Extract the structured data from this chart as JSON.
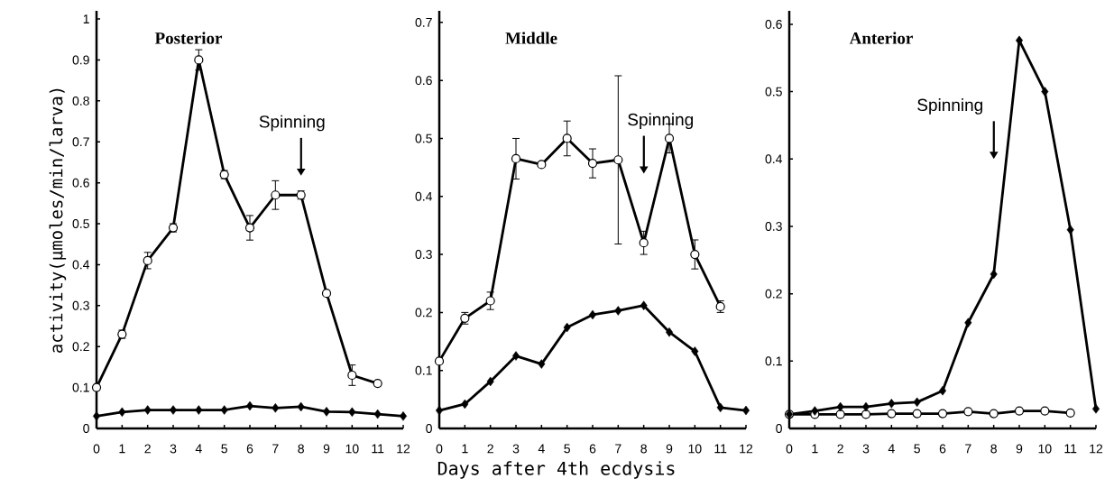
{
  "chart_data": [
    {
      "type": "line",
      "title": "Posterior",
      "ylabel": "activity(μmoles/min/larva)",
      "xlim": [
        0,
        12
      ],
      "xticks": [
        0,
        1,
        2,
        3,
        4,
        5,
        6,
        7,
        8,
        9,
        10,
        11,
        12
      ],
      "ylim": [
        0,
        1.02
      ],
      "yticks": [
        0,
        0.1,
        0.2,
        0.3,
        0.4,
        0.5,
        0.6,
        0.7,
        0.8,
        0.9,
        1
      ],
      "series": [
        {
          "color": "#000000",
          "marker": "circle",
          "x": [
            0,
            1,
            2,
            3,
            4,
            5,
            6,
            7,
            8,
            9,
            10,
            11
          ],
          "values": [
            0.1,
            0.23,
            0.41,
            0.49,
            0.9,
            0.62,
            0.49,
            0.57,
            0.57,
            0.33,
            0.13,
            0.11
          ],
          "errors": [
            null,
            0.01,
            0.02,
            0.01,
            0.025,
            0.01,
            0.03,
            0.035,
            0.01,
            null,
            0.025,
            null
          ]
        },
        {
          "color": "#000000",
          "marker": "diamond",
          "x": [
            0,
            1,
            2,
            3,
            4,
            5,
            6,
            7,
            8,
            9,
            10,
            11,
            12
          ],
          "values": [
            0.03,
            0.04,
            0.045,
            0.045,
            0.045,
            0.045,
            0.055,
            0.05,
            0.053,
            0.041,
            0.04,
            0.035,
            0.03
          ]
        }
      ],
      "annotations": [
        "Spinning"
      ]
    },
    {
      "type": "line",
      "title": "Middle",
      "xlabel": "Days after 4th ecdysis",
      "xlim": [
        0,
        12
      ],
      "xticks": [
        0,
        1,
        2,
        3,
        4,
        5,
        6,
        7,
        8,
        9,
        10,
        11,
        12
      ],
      "ylim": [
        0,
        0.72
      ],
      "yticks": [
        0,
        0.1,
        0.2,
        0.3,
        0.4,
        0.5,
        0.6,
        0.7
      ],
      "series": [
        {
          "color": "#000000",
          "marker": "circle",
          "x": [
            0,
            1,
            2,
            3,
            4,
            5,
            6,
            7,
            8,
            9,
            10,
            11
          ],
          "values": [
            0.116,
            0.19,
            0.22,
            0.465,
            0.455,
            0.5,
            0.457,
            0.463,
            0.32,
            0.5,
            0.3,
            0.21
          ],
          "errors": [
            null,
            0.01,
            0.015,
            0.035,
            null,
            0.03,
            0.025,
            0.145,
            0.02,
            0.025,
            0.025,
            0.01
          ]
        },
        {
          "color": "#000000",
          "marker": "diamond",
          "x": [
            0,
            1,
            2,
            3,
            4,
            5,
            6,
            7,
            8,
            9,
            10,
            11,
            12
          ],
          "values": [
            0.031,
            0.042,
            0.081,
            0.125,
            0.111,
            0.174,
            0.196,
            0.203,
            0.212,
            0.166,
            0.133,
            0.036,
            0.031
          ]
        }
      ],
      "annotations": [
        "Spinning"
      ]
    },
    {
      "type": "line",
      "title": "Anterior",
      "xlim": [
        0,
        12
      ],
      "xticks": [
        0,
        1,
        2,
        3,
        4,
        5,
        6,
        7,
        8,
        9,
        10,
        11,
        12
      ],
      "ylim": [
        0,
        0.62
      ],
      "yticks": [
        0,
        0.1,
        0.2,
        0.3,
        0.4,
        0.5,
        0.6
      ],
      "series": [
        {
          "color": "#000000",
          "marker": "circle",
          "x": [
            0,
            1,
            2,
            3,
            4,
            5,
            6,
            7,
            8,
            9,
            10,
            11
          ],
          "values": [
            0.021,
            0.021,
            0.021,
            0.021,
            0.022,
            0.022,
            0.022,
            0.025,
            0.022,
            0.026,
            0.026,
            0.023
          ]
        },
        {
          "color": "#000000",
          "marker": "diamond",
          "x": [
            0,
            1,
            2,
            3,
            4,
            5,
            6,
            7,
            8,
            9,
            10,
            11,
            12
          ],
          "values": [
            0.021,
            0.026,
            0.032,
            0.032,
            0.037,
            0.039,
            0.056,
            0.157,
            0.229,
            0.576,
            0.5,
            0.295,
            0.029
          ]
        }
      ],
      "annotations": [
        "Spinning"
      ]
    }
  ]
}
